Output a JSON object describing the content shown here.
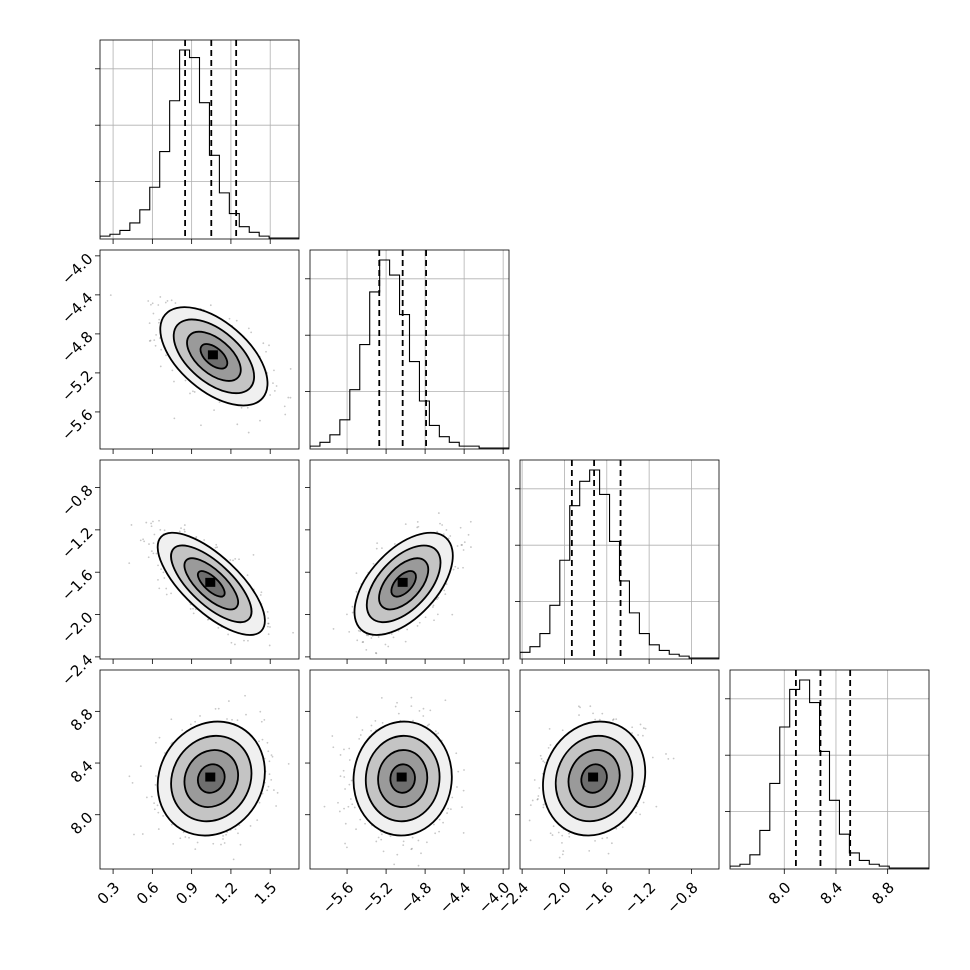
{
  "chart_data": {
    "type": "corner",
    "parameters": [
      {
        "tick_values": [
          0.3,
          0.6,
          0.9,
          1.2,
          1.5
        ],
        "tick_labels": [
          "0.3",
          "0.6",
          "0.9",
          "1.2",
          "1.5"
        ],
        "range": [
          0.2,
          1.72
        ]
      },
      {
        "tick_values": [
          -5.6,
          -5.2,
          -4.8,
          -4.4,
          -4.0
        ],
        "tick_labels": [
          "−5.6",
          "−5.2",
          "−4.8",
          "−4.4",
          "−4.0"
        ],
        "range": [
          -5.98,
          -3.94
        ]
      },
      {
        "tick_values": [
          -2.4,
          -2.0,
          -1.6,
          -1.2,
          -0.8
        ],
        "tick_labels": [
          "−2.4",
          "−2.0",
          "−1.6",
          "−1.2",
          "−0.8"
        ],
        "range": [
          -2.42,
          -0.54
        ]
      },
      {
        "tick_values": [
          8.0,
          8.4,
          8.8
        ],
        "tick_labels": [
          "8.0",
          "8.4",
          "8.8"
        ],
        "range": [
          7.58,
          9.12
        ]
      }
    ],
    "diagonal": [
      {
        "bin_edges_range": [
          0.2,
          1.72
        ],
        "counts": [
          1,
          2,
          4,
          8,
          15,
          27,
          46,
          73,
          100,
          96,
          72,
          44,
          24,
          13,
          6,
          3,
          1,
          0,
          0,
          0
        ],
        "quantiles": [
          0.85,
          1.05,
          1.24
        ]
      },
      {
        "bin_edges_range": [
          -5.98,
          -3.94
        ],
        "counts": [
          1,
          3,
          7,
          15,
          31,
          55,
          83,
          100,
          92,
          71,
          46,
          25,
          12,
          6,
          3,
          1,
          1,
          0,
          0,
          0
        ],
        "quantiles": [
          -5.27,
          -5.03,
          -4.79
        ]
      },
      {
        "bin_edges_range": [
          -2.42,
          -0.54
        ],
        "counts": [
          3,
          6,
          13,
          28,
          52,
          81,
          94,
          100,
          87,
          62,
          41,
          24,
          13,
          7,
          4,
          2,
          1,
          0,
          0,
          0
        ],
        "quantiles": [
          -1.93,
          -1.72,
          -1.47
        ]
      },
      {
        "bin_edges_range": [
          7.58,
          9.12
        ],
        "counts": [
          1,
          2,
          7,
          20,
          45,
          75,
          95,
          100,
          88,
          62,
          36,
          18,
          8,
          4,
          2,
          1,
          0,
          0,
          0,
          0
        ],
        "quantiles": [
          8.09,
          8.28,
          8.51
        ]
      }
    ],
    "pairs": [
      {
        "x_param": 0,
        "y_param": 1,
        "center": [
          1.07,
          -5.03
        ],
        "rho": -0.55
      },
      {
        "x_param": 0,
        "y_param": 2,
        "center": [
          1.05,
          -1.71
        ],
        "rho": -0.72
      },
      {
        "x_param": 1,
        "y_param": 2,
        "center": [
          -5.02,
          -1.71
        ],
        "rho": 0.55
      },
      {
        "x_param": 0,
        "y_param": 3,
        "center": [
          1.05,
          8.28
        ],
        "rho": 0.12
      },
      {
        "x_param": 1,
        "y_param": 3,
        "center": [
          -5.03,
          8.28
        ],
        "rho": 0.03
      },
      {
        "x_param": 2,
        "y_param": 3,
        "center": [
          -1.72,
          8.28
        ],
        "rho": 0.12
      }
    ],
    "contour_sigma_levels": [
      0.5,
      1.0,
      1.5,
      2.0
    ],
    "grid": true
  }
}
